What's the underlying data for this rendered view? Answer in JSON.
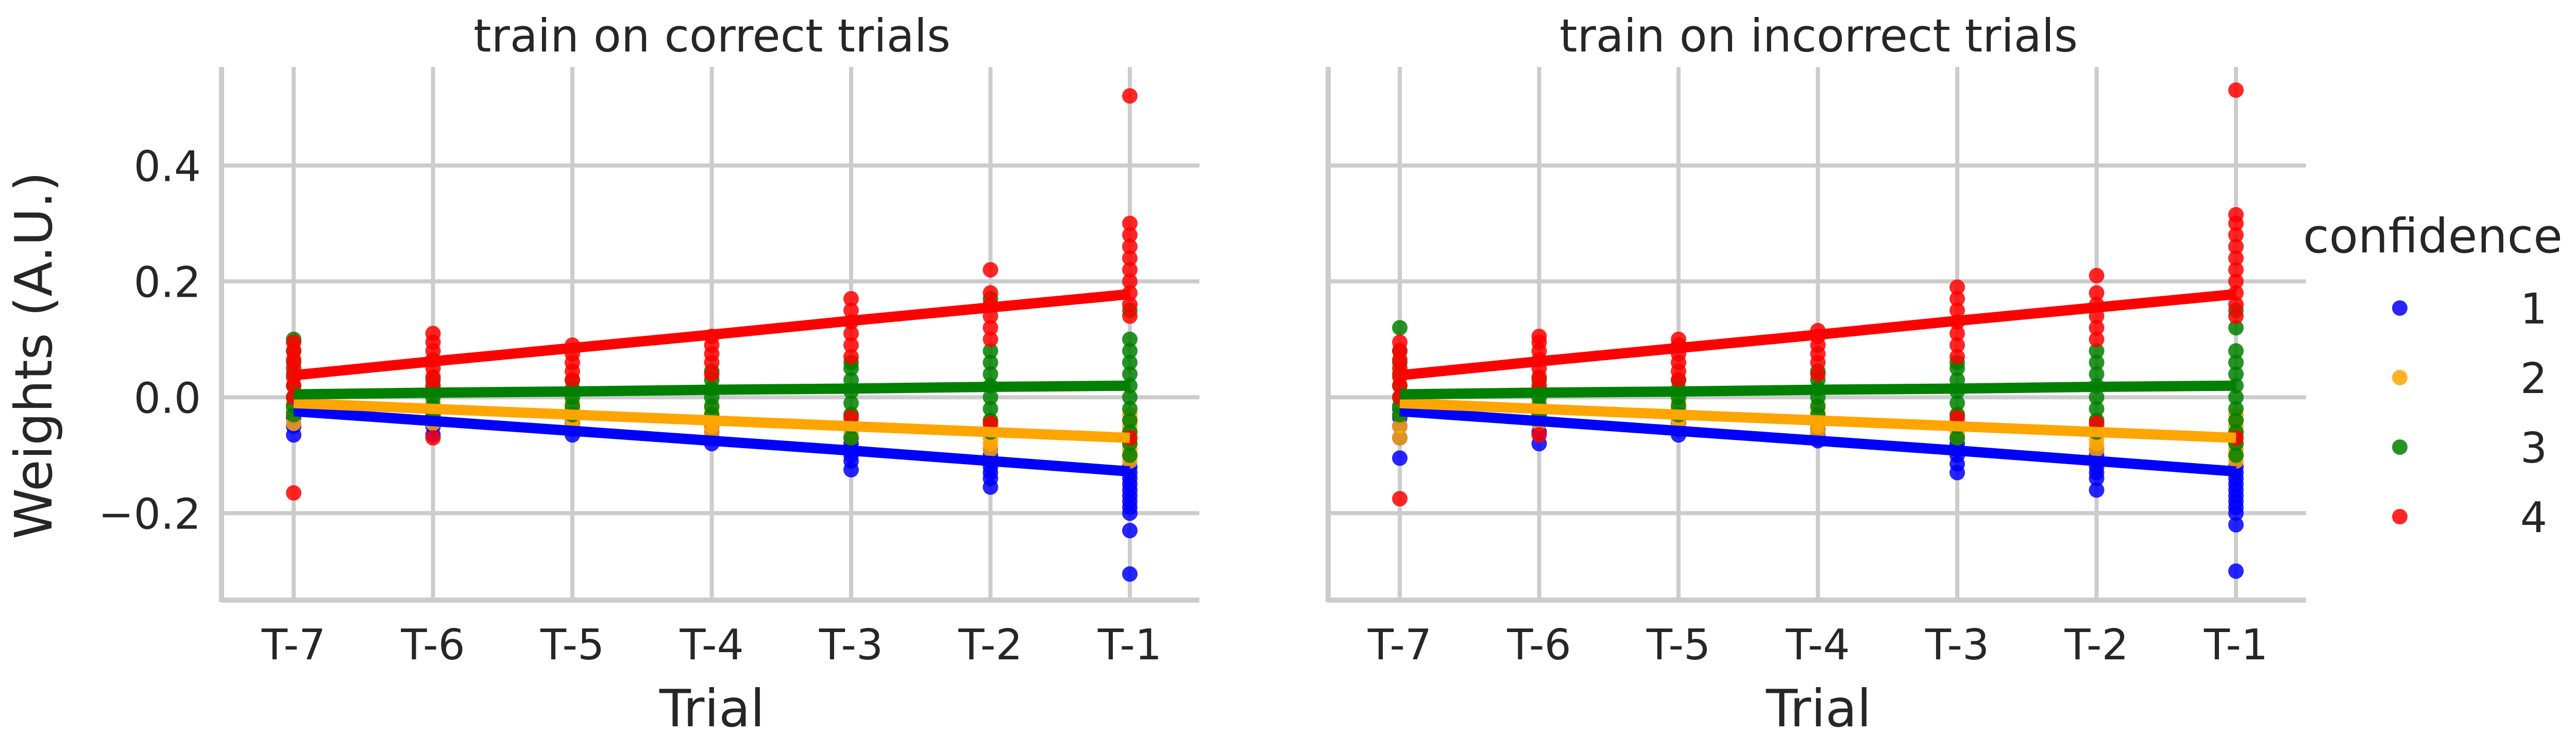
{
  "chart_data": {
    "type": "scatter",
    "ylabel": "Weights (A.U.)",
    "xlabel": "Trial",
    "categories": [
      "T-7",
      "T-6",
      "T-5",
      "T-4",
      "T-3",
      "T-2",
      "T-1"
    ],
    "ylim": [
      -0.35,
      0.57
    ],
    "yticks": [
      -0.2,
      0.0,
      0.2,
      0.4
    ],
    "ytick_labels": [
      "−0.2",
      "0.0",
      "0.2",
      "0.4"
    ],
    "grid": true,
    "legend": {
      "title": "confidence",
      "placement": "right",
      "entries": [
        "1",
        "2",
        "3",
        "4"
      ]
    },
    "colors": {
      "1": "#0000ff",
      "2": "#ffa500",
      "3": "#008000",
      "4": "#ff0000"
    },
    "panels": [
      {
        "title": "train on correct trials",
        "series": [
          {
            "name": "1",
            "fit": [
              -0.024,
              -0.041,
              -0.058,
              -0.075,
              -0.092,
              -0.11,
              -0.128
            ],
            "points": [
              [
                -0.065,
                -0.05,
                -0.035,
                -0.025,
                -0.015
              ],
              [
                -0.065,
                -0.05,
                -0.04,
                -0.03,
                -0.02
              ],
              [
                -0.065,
                -0.055,
                -0.045,
                -0.035
              ],
              [
                -0.08,
                -0.07,
                -0.06,
                -0.05,
                -0.045
              ],
              [
                -0.125,
                -0.11,
                -0.1,
                -0.09,
                -0.08,
                -0.07
              ],
              [
                -0.155,
                -0.14,
                -0.13,
                -0.12,
                -0.11,
                -0.1,
                -0.09
              ],
              [
                -0.305,
                -0.23,
                -0.2,
                -0.19,
                -0.18,
                -0.17,
                -0.16,
                -0.15,
                -0.14,
                -0.13,
                -0.12
              ]
            ]
          },
          {
            "name": "2",
            "fit": [
              -0.01,
              -0.02,
              -0.03,
              -0.04,
              -0.05,
              -0.06,
              -0.07
            ],
            "points": [
              [
                -0.045,
                -0.03,
                -0.02,
                -0.01,
                0.0
              ],
              [
                -0.045,
                -0.03,
                -0.02,
                -0.01
              ],
              [
                -0.05,
                -0.04,
                -0.03,
                -0.02,
                -0.01
              ],
              [
                -0.06,
                -0.05,
                -0.04,
                -0.03,
                -0.02
              ],
              [
                -0.07,
                -0.06,
                -0.05,
                -0.04,
                -0.03
              ],
              [
                -0.09,
                -0.08,
                -0.07,
                -0.06,
                -0.05,
                -0.04
              ],
              [
                -0.11,
                -0.1,
                -0.09,
                -0.08,
                -0.07,
                -0.06,
                -0.05,
                -0.04,
                -0.03
              ]
            ]
          },
          {
            "name": "3",
            "fit": [
              0.005,
              0.008,
              0.01,
              0.013,
              0.015,
              0.018,
              0.02
            ],
            "points": [
              [
                -0.03,
                -0.015,
                0.0,
                0.02,
                0.04,
                0.06,
                0.08,
                0.1
              ],
              [
                -0.03,
                -0.015,
                0.0,
                0.015,
                0.03
              ],
              [
                -0.03,
                -0.015,
                0.0,
                0.015,
                0.03
              ],
              [
                -0.03,
                -0.015,
                0.0,
                0.015,
                0.03,
                0.045
              ],
              [
                -0.07,
                -0.05,
                -0.03,
                -0.01,
                0.01,
                0.03,
                0.05,
                0.06
              ],
              [
                -0.06,
                -0.04,
                -0.02,
                0.0,
                0.02,
                0.04,
                0.06,
                0.08,
                0.17
              ],
              [
                -0.1,
                -0.08,
                -0.06,
                -0.04,
                -0.02,
                0.0,
                0.02,
                0.04,
                0.06,
                0.08,
                0.1,
                0.15
              ]
            ]
          },
          {
            "name": "4",
            "fit": [
              0.038,
              0.062,
              0.085,
              0.108,
              0.132,
              0.155,
              0.178
            ],
            "points": [
              [
                -0.165,
                0.0,
                0.02,
                0.035,
                0.05,
                0.065,
                0.08,
                0.095
              ],
              [
                -0.07,
                0.02,
                0.035,
                0.05,
                0.065,
                0.08,
                0.095,
                0.11
              ],
              [
                0.03,
                0.045,
                0.06,
                0.075,
                0.09
              ],
              [
                0.04,
                0.06,
                0.075,
                0.09,
                0.105
              ],
              [
                -0.035,
                0.07,
                0.09,
                0.11,
                0.13,
                0.15,
                0.17
              ],
              [
                -0.045,
                0.1,
                0.12,
                0.14,
                0.16,
                0.18,
                0.22
              ],
              [
                -0.07,
                0.14,
                0.16,
                0.18,
                0.2,
                0.22,
                0.24,
                0.26,
                0.28,
                0.3,
                0.52
              ]
            ]
          }
        ]
      },
      {
        "title": "train on incorrect trials",
        "series": [
          {
            "name": "1",
            "fit": [
              -0.024,
              -0.041,
              -0.058,
              -0.075,
              -0.092,
              -0.11,
              -0.128
            ],
            "points": [
              [
                -0.105,
                -0.07,
                -0.05,
                -0.035,
                -0.02
              ],
              [
                -0.08,
                -0.06,
                -0.045,
                -0.03,
                -0.02
              ],
              [
                -0.065,
                -0.055,
                -0.045,
                -0.035
              ],
              [
                -0.075,
                -0.065,
                -0.055,
                -0.045
              ],
              [
                -0.13,
                -0.115,
                -0.1,
                -0.09,
                -0.08,
                -0.07
              ],
              [
                -0.16,
                -0.14,
                -0.13,
                -0.12,
                -0.11,
                -0.1,
                -0.09
              ],
              [
                -0.3,
                -0.22,
                -0.2,
                -0.19,
                -0.18,
                -0.17,
                -0.16,
                -0.15,
                -0.14,
                -0.13,
                -0.12
              ]
            ]
          },
          {
            "name": "2",
            "fit": [
              -0.01,
              -0.02,
              -0.03,
              -0.04,
              -0.05,
              -0.06,
              -0.07
            ],
            "points": [
              [
                -0.07,
                -0.05,
                -0.03,
                -0.015,
                0.0
              ],
              [
                -0.045,
                -0.03,
                -0.02,
                -0.01
              ],
              [
                -0.05,
                -0.04,
                -0.03,
                -0.02,
                -0.01
              ],
              [
                -0.06,
                -0.05,
                -0.04,
                -0.03,
                -0.02
              ],
              [
                -0.07,
                -0.06,
                -0.05,
                -0.04,
                -0.03
              ],
              [
                -0.09,
                -0.08,
                -0.07,
                -0.06,
                -0.05,
                -0.04
              ],
              [
                -0.11,
                -0.1,
                -0.09,
                -0.08,
                -0.07,
                -0.06,
                -0.05,
                -0.04,
                -0.03
              ]
            ]
          },
          {
            "name": "3",
            "fit": [
              0.005,
              0.008,
              0.01,
              0.013,
              0.015,
              0.018,
              0.02
            ],
            "points": [
              [
                -0.03,
                -0.015,
                0.0,
                0.02,
                0.04,
                0.06,
                0.08,
                0.12
              ],
              [
                -0.03,
                -0.015,
                0.0,
                0.015,
                0.03
              ],
              [
                -0.03,
                -0.015,
                0.0,
                0.015,
                0.03
              ],
              [
                -0.03,
                -0.015,
                0.0,
                0.015,
                0.03,
                0.045
              ],
              [
                -0.07,
                -0.05,
                -0.03,
                -0.01,
                0.01,
                0.03,
                0.05,
                0.06
              ],
              [
                -0.06,
                -0.04,
                -0.02,
                0.0,
                0.02,
                0.04,
                0.06,
                0.08
              ],
              [
                -0.1,
                -0.08,
                -0.06,
                -0.04,
                -0.02,
                0.0,
                0.02,
                0.04,
                0.06,
                0.08,
                0.12,
                0.15
              ]
            ]
          },
          {
            "name": "4",
            "fit": [
              0.038,
              0.062,
              0.085,
              0.108,
              0.132,
              0.155,
              0.178
            ],
            "points": [
              [
                -0.175,
                0.0,
                0.02,
                0.035,
                0.05,
                0.065,
                0.08,
                0.095
              ],
              [
                -0.065,
                0.02,
                0.035,
                0.05,
                0.065,
                0.08,
                0.095,
                0.105
              ],
              [
                0.03,
                0.045,
                0.06,
                0.075,
                0.09,
                0.1
              ],
              [
                0.04,
                0.06,
                0.075,
                0.09,
                0.105,
                0.115
              ],
              [
                -0.035,
                0.07,
                0.09,
                0.11,
                0.13,
                0.15,
                0.17,
                0.19
              ],
              [
                -0.045,
                0.1,
                0.12,
                0.14,
                0.16,
                0.18,
                0.21
              ],
              [
                -0.07,
                0.14,
                0.16,
                0.18,
                0.2,
                0.22,
                0.24,
                0.26,
                0.28,
                0.3,
                0.315,
                0.53
              ]
            ]
          }
        ]
      }
    ]
  }
}
